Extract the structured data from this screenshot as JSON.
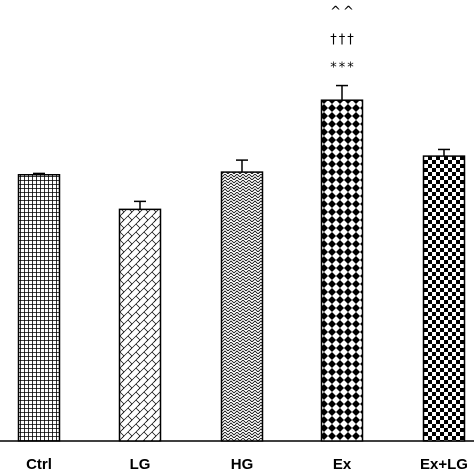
{
  "chart_data": {
    "type": "bar",
    "title": "",
    "xlabel": "",
    "ylabel": "",
    "categories": [
      "Ctrl",
      "LG",
      "HG",
      "Ex",
      "Ex+LG"
    ],
    "values": [
      100,
      87,
      101,
      128,
      107
    ],
    "errors": [
      0.5,
      3,
      4.5,
      5.5,
      2.5
    ],
    "ylim": [
      0,
      160
    ],
    "annotations": [
      {
        "category": "Ex",
        "lines": [
          "^^",
          "†††",
          "***"
        ]
      }
    ],
    "bar_fills": [
      "grid",
      "diagonal-weave",
      "herringbone",
      "diamond-checker",
      "checkerboard"
    ],
    "colors": {
      "bar_stroke": "#000000",
      "pattern": "#000000",
      "background": "#ffffff"
    }
  }
}
